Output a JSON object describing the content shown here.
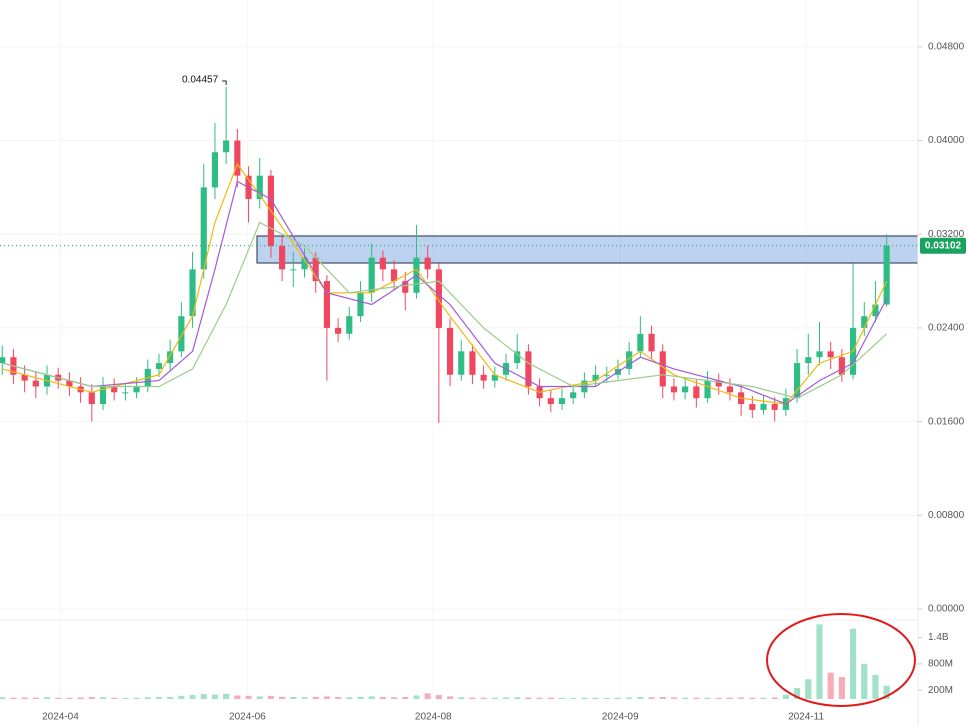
{
  "chart_data": {
    "type": "candlestick",
    "xlim": [
      -0.2,
      81.8
    ],
    "xticks": [
      {
        "value": 5.2,
        "label": "2024-04"
      },
      {
        "value": 21.9,
        "label": "2024-06"
      },
      {
        "value": 38.5,
        "label": "2024-08"
      },
      {
        "value": 55.2,
        "label": "2024-09"
      },
      {
        "value": 71.8,
        "label": "2024-11"
      }
    ],
    "ylim": [
      -0.00094,
      0.052
    ],
    "yticks": [
      {
        "value": 0,
        "label": "0.00000"
      },
      {
        "value": 0.008,
        "label": "0.00800"
      },
      {
        "value": 0.016,
        "label": "0.01600"
      },
      {
        "value": 0.024,
        "label": "0.02400"
      },
      {
        "value": 0.032,
        "label": "0.03200"
      },
      {
        "value": 0.04,
        "label": "0.04000"
      },
      {
        "value": 0.048,
        "label": "0.04800"
      }
    ],
    "grid": true,
    "up_color": "#2dbd85",
    "down_color": "#f0475e",
    "last_price_color": "#1aa260",
    "open": [
      0.021,
      0.0215,
      0.02,
      0.0195,
      0.019,
      0.02,
      0.0195,
      0.019,
      0.0185,
      0.0175,
      0.019,
      0.0185,
      0.0185,
      0.019,
      0.0205,
      0.021,
      0.022,
      0.025,
      0.029,
      0.036,
      0.039,
      0.04,
      0.037,
      0.035,
      0.037,
      0.031,
      0.029,
      0.029,
      0.03,
      0.028,
      0.024,
      0.0235,
      0.025,
      0.027,
      0.03,
      0.029,
      0.028,
      0.027,
      0.03,
      0.029,
      0.024,
      0.02,
      0.022,
      0.02,
      0.0195,
      0.02,
      0.021,
      0.022,
      0.019,
      0.018,
      0.0175,
      0.018,
      0.0185,
      0.0195,
      0.02,
      0.02,
      0.0205,
      0.022,
      0.0235,
      0.022,
      0.019,
      0.0185,
      0.019,
      0.018,
      0.0195,
      0.019,
      0.0185,
      0.0175,
      0.017,
      0.0175,
      0.017,
      0.018,
      0.021,
      0.0215,
      0.022,
      0.0215,
      0.02,
      0.024,
      0.025,
      0.026
    ],
    "high": [
      0.0225,
      0.0222,
      0.0208,
      0.0202,
      0.0208,
      0.0206,
      0.0202,
      0.0198,
      0.0192,
      0.0198,
      0.0197,
      0.0193,
      0.0198,
      0.0213,
      0.0218,
      0.023,
      0.0262,
      0.0305,
      0.038,
      0.0415,
      0.04457,
      0.041,
      0.0378,
      0.0385,
      0.0375,
      0.0318,
      0.0305,
      0.0308,
      0.0305,
      0.0285,
      0.0248,
      0.0258,
      0.028,
      0.0312,
      0.0306,
      0.0298,
      0.0288,
      0.0328,
      0.031,
      0.0295,
      0.0248,
      0.023,
      0.0226,
      0.0208,
      0.0207,
      0.0218,
      0.0235,
      0.0226,
      0.0197,
      0.0187,
      0.0188,
      0.0192,
      0.0202,
      0.0208,
      0.0207,
      0.0213,
      0.0228,
      0.025,
      0.0242,
      0.0226,
      0.0197,
      0.0198,
      0.0196,
      0.0203,
      0.0201,
      0.0197,
      0.0191,
      0.0182,
      0.0183,
      0.0181,
      0.0188,
      0.0222,
      0.0235,
      0.0245,
      0.0228,
      0.0222,
      0.0295,
      0.0262,
      0.028,
      0.032
    ],
    "low": [
      0.02,
      0.0192,
      0.0185,
      0.018,
      0.0183,
      0.0188,
      0.0182,
      0.0176,
      0.016,
      0.017,
      0.0178,
      0.0178,
      0.018,
      0.0185,
      0.0198,
      0.0203,
      0.0215,
      0.024,
      0.0282,
      0.035,
      0.038,
      0.036,
      0.033,
      0.0342,
      0.03,
      0.028,
      0.0275,
      0.0283,
      0.027,
      0.0195,
      0.0228,
      0.023,
      0.0245,
      0.0262,
      0.028,
      0.0272,
      0.0255,
      0.0265,
      0.0282,
      0.0159,
      0.019,
      0.0195,
      0.0192,
      0.0188,
      0.0189,
      0.0195,
      0.0205,
      0.0183,
      0.0173,
      0.0168,
      0.017,
      0.0175,
      0.018,
      0.019,
      0.0193,
      0.0196,
      0.02,
      0.0215,
      0.0213,
      0.018,
      0.0178,
      0.0179,
      0.0172,
      0.0176,
      0.0183,
      0.0178,
      0.0165,
      0.0163,
      0.0166,
      0.016,
      0.0165,
      0.0176,
      0.02,
      0.0208,
      0.0205,
      0.0194,
      0.0196,
      0.0233,
      0.0245,
      0.0258
    ],
    "close": [
      0.0215,
      0.02,
      0.0195,
      0.019,
      0.02,
      0.0195,
      0.019,
      0.0185,
      0.0175,
      0.019,
      0.0185,
      0.0185,
      0.019,
      0.0205,
      0.021,
      0.022,
      0.025,
      0.029,
      0.036,
      0.039,
      0.04,
      0.037,
      0.035,
      0.037,
      0.031,
      0.029,
      0.029,
      0.03,
      0.028,
      0.024,
      0.0235,
      0.025,
      0.027,
      0.03,
      0.029,
      0.028,
      0.027,
      0.03,
      0.029,
      0.024,
      0.02,
      0.022,
      0.02,
      0.0195,
      0.02,
      0.021,
      0.022,
      0.019,
      0.018,
      0.0175,
      0.018,
      0.0185,
      0.0195,
      0.02,
      0.02,
      0.0205,
      0.022,
      0.0235,
      0.022,
      0.019,
      0.0185,
      0.019,
      0.018,
      0.0195,
      0.019,
      0.0185,
      0.0175,
      0.017,
      0.0175,
      0.017,
      0.018,
      0.021,
      0.0215,
      0.022,
      0.0215,
      0.02,
      0.024,
      0.025,
      0.026,
      0.03102
    ],
    "moving_averages": [
      {
        "color": "#f0b90b",
        "x": [
          0,
          8,
          14,
          17,
          19,
          21,
          24,
          29,
          33,
          37,
          40,
          44,
          48,
          53,
          57,
          60,
          66,
          70,
          73,
          76,
          79
        ],
        "values": [
          0.0205,
          0.0185,
          0.02,
          0.025,
          0.033,
          0.038,
          0.034,
          0.027,
          0.027,
          0.029,
          0.025,
          0.02,
          0.0185,
          0.0195,
          0.022,
          0.02,
          0.018,
          0.0175,
          0.021,
          0.022,
          0.028
        ]
      },
      {
        "color": "#a259d9",
        "x": [
          0,
          8,
          14,
          17,
          19,
          21,
          24,
          29,
          33,
          37,
          40,
          44,
          48,
          53,
          57,
          60,
          66,
          70,
          73,
          76,
          79
        ],
        "values": [
          0.021,
          0.019,
          0.0195,
          0.022,
          0.029,
          0.0365,
          0.035,
          0.027,
          0.026,
          0.0285,
          0.026,
          0.021,
          0.019,
          0.019,
          0.0215,
          0.0205,
          0.019,
          0.0175,
          0.0195,
          0.021,
          0.0265
        ]
      },
      {
        "color": "#9ccc8a",
        "x": [
          0,
          8,
          14,
          17,
          20,
          23,
          27,
          31,
          35,
          39,
          43,
          47,
          51,
          55,
          59,
          63,
          67,
          71,
          75,
          79
        ],
        "values": [
          0.021,
          0.019,
          0.019,
          0.0205,
          0.026,
          0.033,
          0.031,
          0.027,
          0.0275,
          0.028,
          0.024,
          0.021,
          0.019,
          0.0195,
          0.02,
          0.0195,
          0.019,
          0.018,
          0.02,
          0.0235
        ]
      }
    ],
    "volume": {
      "ylim": [
        0,
        1800000000
      ],
      "yticks": [
        {
          "value": 200000000,
          "label": "200M"
        },
        {
          "value": 800000000,
          "label": "800M"
        },
        {
          "value": 1400000000,
          "label": "1.4B"
        }
      ],
      "values": [
        40000000,
        30000000,
        35000000,
        30000000,
        40000000,
        30000000,
        25000000,
        35000000,
        45000000,
        40000000,
        30000000,
        25000000,
        30000000,
        40000000,
        45000000,
        50000000,
        70000000,
        90000000,
        110000000,
        100000000,
        120000000,
        80000000,
        70000000,
        60000000,
        70000000,
        50000000,
        45000000,
        40000000,
        50000000,
        60000000,
        45000000,
        40000000,
        50000000,
        60000000,
        45000000,
        40000000,
        45000000,
        80000000,
        130000000,
        90000000,
        60000000,
        40000000,
        35000000,
        30000000,
        30000000,
        35000000,
        40000000,
        35000000,
        30000000,
        30000000,
        25000000,
        25000000,
        30000000,
        30000000,
        25000000,
        30000000,
        35000000,
        45000000,
        40000000,
        45000000,
        35000000,
        30000000,
        30000000,
        30000000,
        25000000,
        30000000,
        35000000,
        30000000,
        30000000,
        35000000,
        100000000,
        250000000,
        450000000,
        1700000000,
        600000000,
        500000000,
        1600000000,
        800000000,
        550000000,
        300000000
      ]
    }
  }
}
